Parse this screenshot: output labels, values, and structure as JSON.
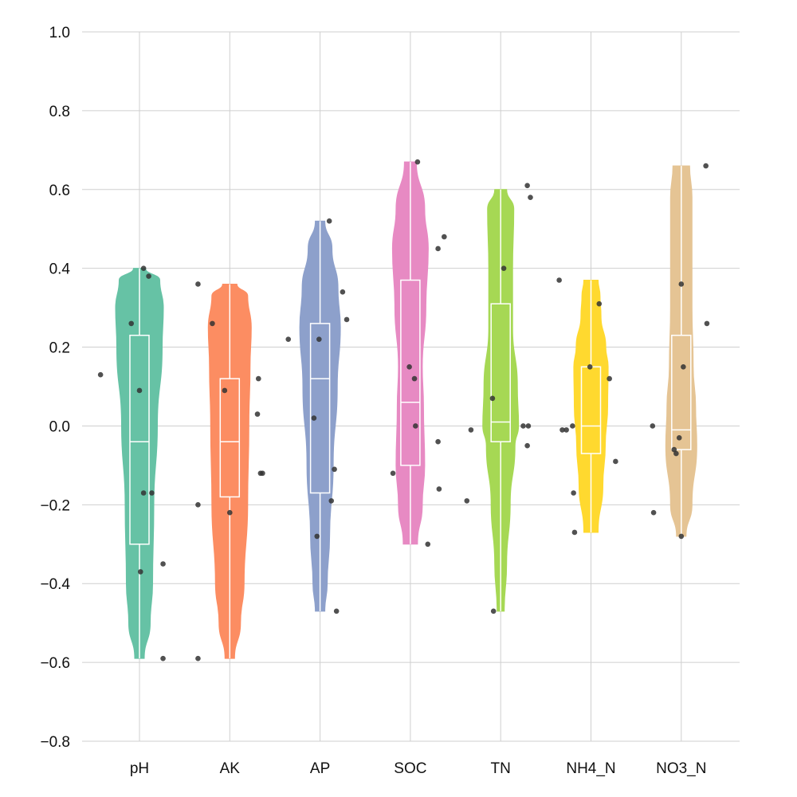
{
  "chart_data": {
    "type": "violin",
    "title": "",
    "xlabel": "",
    "ylabel": "",
    "ylim": [
      -0.8,
      1.0
    ],
    "yticks": [
      1.0,
      0.8,
      0.6,
      0.4,
      0.2,
      0.0,
      -0.2,
      -0.4,
      -0.6,
      -0.8
    ],
    "ytick_labels": [
      "1.0",
      "0.8",
      "0.6",
      "0.4",
      "0.2",
      "0.0",
      "−0.2",
      "−0.4",
      "−0.6",
      "−0.8"
    ],
    "grid": true,
    "categories": [
      "pH",
      "AK",
      "AP",
      "SOC",
      "TN",
      "NH4_N",
      "NO3_N"
    ],
    "series": [
      {
        "category": "pH",
        "color": "#66c2a5",
        "min": -0.59,
        "q1": -0.3,
        "median": -0.04,
        "q3": 0.23,
        "max": 0.4,
        "density": [
          [
            -0.59,
            0.2
          ],
          [
            -0.5,
            0.45
          ],
          [
            -0.4,
            0.55
          ],
          [
            -0.2,
            0.6
          ],
          [
            0.0,
            0.75
          ],
          [
            0.2,
            0.95
          ],
          [
            0.3,
            1.0
          ],
          [
            0.37,
            0.85
          ],
          [
            0.4,
            0.25
          ]
        ],
        "points": [
          [
            -0.38,
            0.13
          ],
          [
            -0.08,
            0.26
          ],
          [
            0.0,
            0.09
          ],
          [
            0.04,
            0.4
          ],
          [
            0.09,
            0.38
          ],
          [
            0.04,
            -0.17
          ],
          [
            0.12,
            -0.17
          ],
          [
            0.01,
            -0.37
          ],
          [
            0.23,
            -0.35
          ],
          [
            0.23,
            -0.59
          ]
        ]
      },
      {
        "category": "AK",
        "color": "#fc8d62",
        "min": -0.59,
        "q1": -0.18,
        "median": -0.04,
        "q3": 0.12,
        "max": 0.36,
        "density": [
          [
            -0.59,
            0.2
          ],
          [
            -0.5,
            0.45
          ],
          [
            -0.4,
            0.6
          ],
          [
            -0.2,
            0.75
          ],
          [
            0.0,
            0.8
          ],
          [
            0.15,
            0.85
          ],
          [
            0.25,
            0.9
          ],
          [
            0.33,
            0.75
          ],
          [
            0.36,
            0.3
          ]
        ],
        "points": [
          [
            -0.31,
            0.36
          ],
          [
            -0.17,
            0.26
          ],
          [
            -0.05,
            0.09
          ],
          [
            0.0,
            -0.22
          ],
          [
            0.28,
            0.12
          ],
          [
            0.27,
            0.03
          ],
          [
            0.3,
            -0.12
          ],
          [
            0.32,
            -0.12
          ],
          [
            -0.31,
            -0.2
          ],
          [
            -0.31,
            -0.59
          ]
        ]
      },
      {
        "category": "AP",
        "color": "#8da0cb",
        "min": -0.47,
        "q1": -0.17,
        "median": 0.12,
        "q3": 0.26,
        "max": 0.52,
        "density": [
          [
            -0.47,
            0.2
          ],
          [
            -0.4,
            0.3
          ],
          [
            -0.28,
            0.4
          ],
          [
            -0.1,
            0.55
          ],
          [
            0.1,
            0.72
          ],
          [
            0.25,
            0.85
          ],
          [
            0.35,
            0.75
          ],
          [
            0.45,
            0.5
          ],
          [
            0.52,
            0.2
          ]
        ],
        "points": [
          [
            0.09,
            0.52
          ],
          [
            0.22,
            0.34
          ],
          [
            0.26,
            0.27
          ],
          [
            -0.31,
            0.22
          ],
          [
            -0.01,
            0.22
          ],
          [
            -0.06,
            0.02
          ],
          [
            0.14,
            -0.11
          ],
          [
            0.11,
            -0.19
          ],
          [
            -0.03,
            -0.28
          ],
          [
            0.16,
            -0.47
          ]
        ]
      },
      {
        "category": "SOC",
        "color": "#e78ac3",
        "min": -0.3,
        "q1": -0.1,
        "median": 0.06,
        "q3": 0.37,
        "max": 0.67,
        "density": [
          [
            -0.3,
            0.3
          ],
          [
            -0.2,
            0.5
          ],
          [
            -0.1,
            0.6
          ],
          [
            0.05,
            0.55
          ],
          [
            0.15,
            0.5
          ],
          [
            0.3,
            0.65
          ],
          [
            0.45,
            0.75
          ],
          [
            0.55,
            0.6
          ],
          [
            0.67,
            0.25
          ]
        ],
        "points": [
          [
            0.07,
            0.67
          ],
          [
            0.33,
            0.48
          ],
          [
            0.27,
            0.45
          ],
          [
            -0.01,
            0.15
          ],
          [
            0.04,
            0.12
          ],
          [
            0.05,
            0.0
          ],
          [
            0.27,
            -0.04
          ],
          [
            -0.17,
            -0.12
          ],
          [
            0.28,
            -0.16
          ],
          [
            0.17,
            -0.3
          ]
        ]
      },
      {
        "category": "TN",
        "color": "#a6d854",
        "min": -0.47,
        "q1": -0.04,
        "median": 0.01,
        "q3": 0.31,
        "max": 0.6,
        "density": [
          [
            -0.47,
            0.15
          ],
          [
            -0.35,
            0.25
          ],
          [
            -0.2,
            0.4
          ],
          [
            -0.05,
            0.6
          ],
          [
            0.0,
            0.75
          ],
          [
            0.1,
            0.7
          ],
          [
            0.25,
            0.5
          ],
          [
            0.4,
            0.5
          ],
          [
            0.55,
            0.55
          ],
          [
            0.6,
            0.25
          ]
        ],
        "points": [
          [
            0.26,
            0.61
          ],
          [
            0.29,
            0.58
          ],
          [
            0.03,
            0.4
          ],
          [
            -0.08,
            0.07
          ],
          [
            0.22,
            0.0
          ],
          [
            0.27,
            0.0
          ],
          [
            -0.29,
            -0.01
          ],
          [
            0.26,
            -0.05
          ],
          [
            -0.33,
            -0.19
          ],
          [
            -0.07,
            -0.47
          ]
        ]
      },
      {
        "category": "NH4_N",
        "color": "#ffd92f",
        "min": -0.27,
        "q1": -0.07,
        "median": 0.0,
        "q3": 0.15,
        "max": 0.37,
        "density": [
          [
            -0.27,
            0.3
          ],
          [
            -0.15,
            0.5
          ],
          [
            -0.05,
            0.6
          ],
          [
            0.05,
            0.7
          ],
          [
            0.15,
            0.72
          ],
          [
            0.2,
            0.62
          ],
          [
            0.28,
            0.42
          ],
          [
            0.33,
            0.38
          ],
          [
            0.37,
            0.3
          ]
        ],
        "points": [
          [
            -0.31,
            0.37
          ],
          [
            0.08,
            0.31
          ],
          [
            -0.01,
            0.15
          ],
          [
            0.18,
            0.12
          ],
          [
            -0.18,
            0.0
          ],
          [
            -0.28,
            -0.01
          ],
          [
            -0.24,
            -0.01
          ],
          [
            0.24,
            -0.09
          ],
          [
            -0.17,
            -0.17
          ],
          [
            -0.16,
            -0.27
          ]
        ]
      },
      {
        "category": "NO3_N",
        "color": "#e5c494",
        "min": -0.28,
        "q1": -0.06,
        "median": -0.01,
        "q3": 0.23,
        "max": 0.66,
        "density": [
          [
            -0.28,
            0.2
          ],
          [
            -0.2,
            0.45
          ],
          [
            -0.05,
            0.65
          ],
          [
            0.05,
            0.6
          ],
          [
            0.15,
            0.5
          ],
          [
            0.3,
            0.45
          ],
          [
            0.45,
            0.45
          ],
          [
            0.58,
            0.45
          ],
          [
            0.66,
            0.35
          ]
        ],
        "points": [
          [
            0.24,
            0.66
          ],
          [
            0.0,
            0.36
          ],
          [
            0.25,
            0.26
          ],
          [
            0.02,
            0.15
          ],
          [
            -0.28,
            0.0
          ],
          [
            -0.02,
            -0.03
          ],
          [
            -0.07,
            -0.06
          ],
          [
            -0.05,
            -0.07
          ],
          [
            -0.27,
            -0.22
          ],
          [
            0.0,
            -0.28
          ]
        ]
      }
    ]
  }
}
